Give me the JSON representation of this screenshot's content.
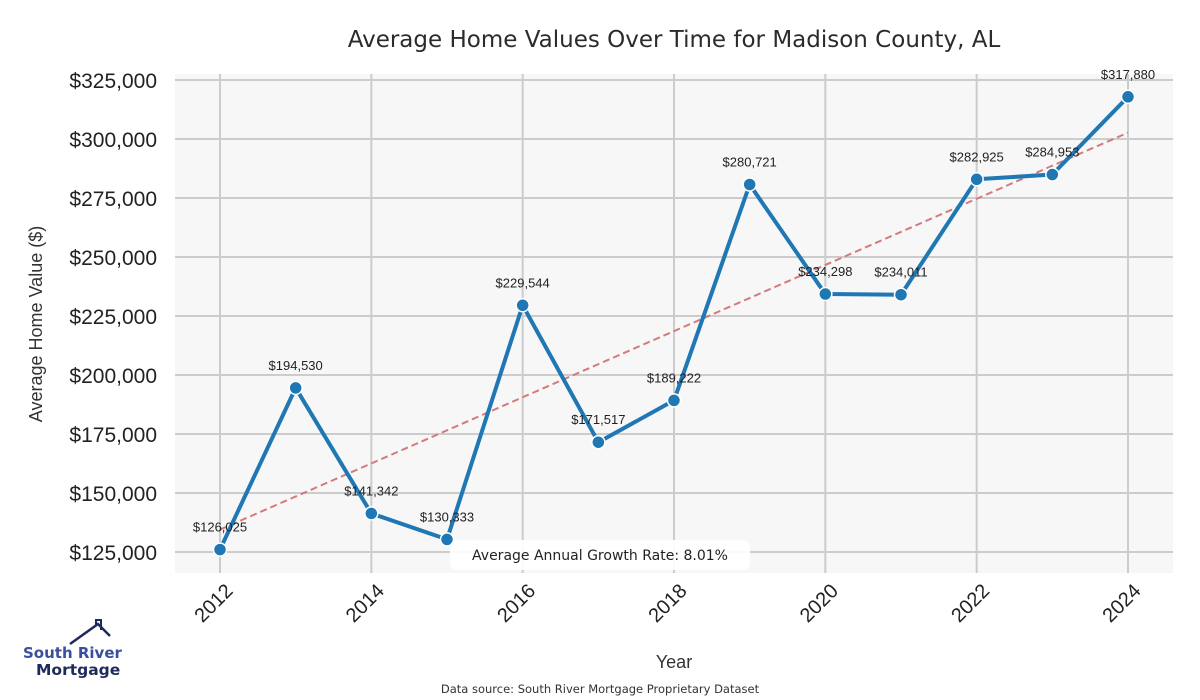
{
  "chart_data": {
    "type": "line",
    "title": "Average Home Values Over Time for Madison County, AL",
    "xlabel": "Year",
    "ylabel": "Average Home Value ($)",
    "x": [
      2012,
      2013,
      2014,
      2015,
      2016,
      2017,
      2018,
      2019,
      2020,
      2021,
      2022,
      2023,
      2024
    ],
    "series": [
      {
        "name": "Average Home Value",
        "values": [
          126025,
          194530,
          141342,
          130333,
          229544,
          171517,
          189222,
          280721,
          234298,
          234011,
          282925,
          284953,
          317880
        ],
        "labels": [
          "$126,025",
          "$194,530",
          "$141,342",
          "$130,333",
          "$229,544",
          "$171,517",
          "$189,222",
          "$280,721",
          "$234,298",
          "$234,011",
          "$282,925",
          "$284,953",
          "$317,880"
        ],
        "color": "#1f77b4"
      },
      {
        "name": "Trend",
        "style": "dashed",
        "x": [
          2012,
          2024
        ],
        "values": [
          134500,
          302700
        ],
        "color": "#d47a7a"
      }
    ],
    "xticks": [
      2012,
      2014,
      2016,
      2018,
      2020,
      2022,
      2024
    ],
    "xtick_labels": [
      "2012",
      "2014",
      "2016",
      "2018",
      "2020",
      "2022",
      "2024"
    ],
    "yticks": [
      125000,
      150000,
      175000,
      200000,
      225000,
      250000,
      275000,
      300000,
      325000
    ],
    "ytick_labels": [
      "$125,000",
      "$150,000",
      "$175,000",
      "$200,000",
      "$225,000",
      "$250,000",
      "$275,000",
      "$300,000",
      "$325,000"
    ],
    "xlim": [
      2011.4,
      2024.6
    ],
    "ylim": [
      116000,
      328000
    ],
    "grid": true,
    "annotation": "Average Annual Growth Rate: 8.01%"
  },
  "footer": {
    "source": "Data source: South River Mortgage Proprietary Dataset"
  },
  "logo": {
    "line1": "South River",
    "line2": "Mortgage",
    "color_primary": "#1f2a5c",
    "color_secondary": "#3a4fa0"
  },
  "colors": {
    "plot_bg": "#f7f7f7",
    "grid": "#cccccc",
    "line": "#1f77b4",
    "trend": "#d47a7a"
  }
}
